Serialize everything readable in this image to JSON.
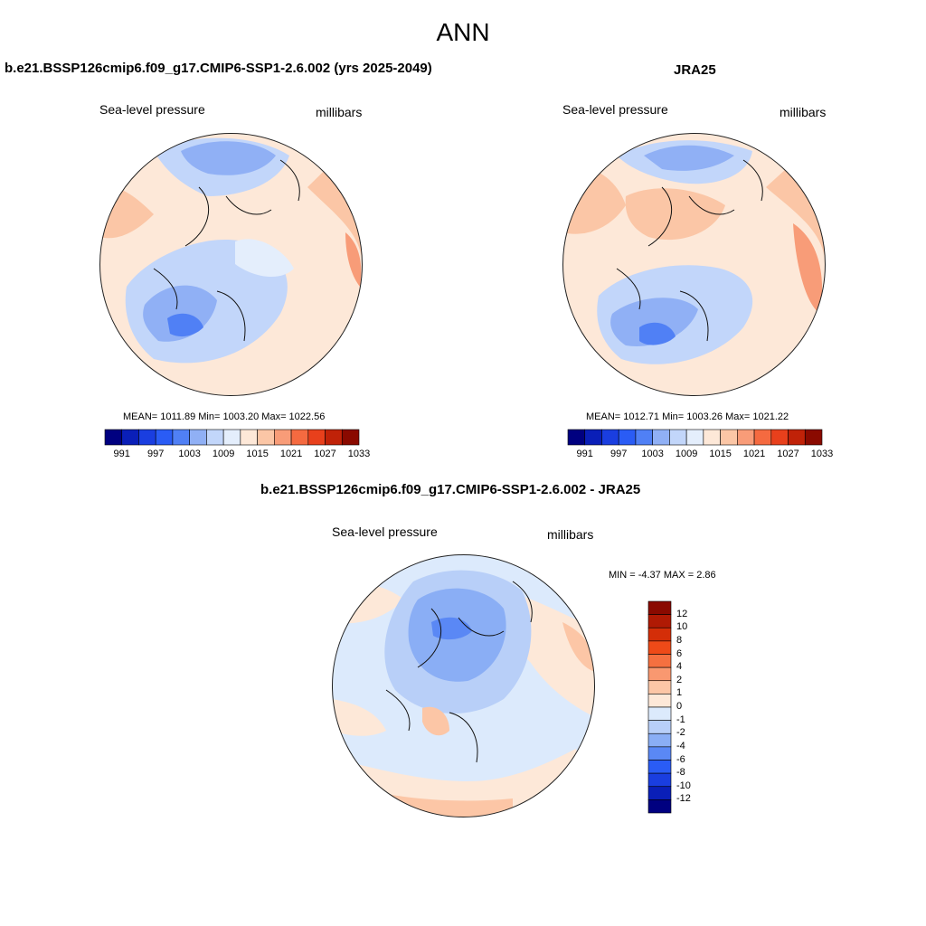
{
  "title": "ANN",
  "panels": [
    {
      "title": "b.e21.BSSP126cmip6.f09_g17.CMIP6-SSP1-2.6.002 (yrs 2025-2049)",
      "variable": "Sea-level pressure",
      "units": "millibars",
      "stats": "MEAN= 1011.89  Min= 1003.20  Max= 1022.56",
      "colorbar_labels": [
        "991",
        "997",
        "1003",
        "1009",
        "1015",
        "1021",
        "1027",
        "1033"
      ]
    },
    {
      "title": "JRA25",
      "variable": "Sea-level pressure",
      "units": "millibars",
      "stats": "MEAN= 1012.71  Min= 1003.26  Max= 1021.22",
      "colorbar_labels": [
        "991",
        "997",
        "1003",
        "1009",
        "1015",
        "1021",
        "1027",
        "1033"
      ]
    },
    {
      "title": "b.e21.BSSP126cmip6.f09_g17.CMIP6-SSP1-2.6.002 - JRA25",
      "variable": "Sea-level pressure",
      "units": "millibars",
      "stats": "MIN =  -4.37 MAX =   2.86",
      "colorbar_labels": [
        "12",
        "10",
        "8",
        "6",
        "4",
        "2",
        "1",
        "0",
        "-1",
        "-2",
        "-4",
        "-6",
        "-8",
        "-10",
        "-12"
      ]
    }
  ],
  "colors": {
    "abs_scale": [
      "#000080",
      "#0a1fb8",
      "#1a3ee0",
      "#2a5cf5",
      "#5080f5",
      "#90b0f5",
      "#c2d6fa",
      "#e4eefc",
      "#fde8d8",
      "#fbc6a6",
      "#f89c78",
      "#f56a40",
      "#e8401c",
      "#c02208",
      "#8a0a00"
    ],
    "diff_scale": [
      "#8a0a00",
      "#b01a04",
      "#d42e08",
      "#ee4a18",
      "#f57040",
      "#f99870",
      "#fcc6a6",
      "#fde8d8",
      "#dceafc",
      "#b8cff8",
      "#8aaef5",
      "#5a88f5",
      "#2a5cf5",
      "#1a3ee0",
      "#0a1fb8",
      "#000080"
    ]
  }
}
